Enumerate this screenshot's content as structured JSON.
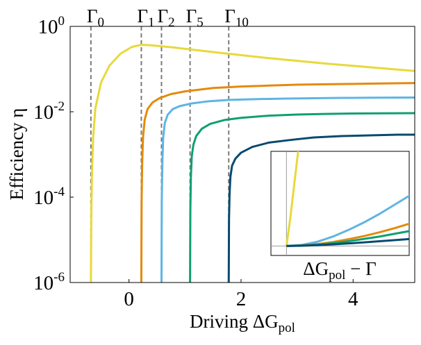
{
  "chart_data": [
    {
      "type": "line",
      "xlabel": "Driving ΔG",
      "xlabel_sub": "pol",
      "ylabel": "Efficiency η",
      "xlim": [
        -1.05,
        5.1
      ],
      "ylim": [
        1e-06,
        1
      ],
      "yscale": "log",
      "grid": false,
      "x_ticks": [
        {
          "value": 0,
          "label": "0"
        },
        {
          "value": 2,
          "label": "2"
        },
        {
          "value": 4,
          "label": "4"
        }
      ],
      "y_ticks": [
        {
          "value": 1,
          "base": "10",
          "exp": "0"
        },
        {
          "value": 0.01,
          "base": "10",
          "exp": "-2"
        },
        {
          "value": 0.0001,
          "base": "10",
          "exp": "-4"
        },
        {
          "value": 1e-06,
          "base": "10",
          "exp": "-6"
        }
      ],
      "thresholds": [
        {
          "label": "Γ",
          "sub": "0",
          "x": -0.68
        },
        {
          "label": "Γ",
          "sub": "1",
          "x": 0.22
        },
        {
          "label": "Γ",
          "sub": "2",
          "x": 0.58
        },
        {
          "label": "Γ",
          "sub": "5",
          "x": 1.09
        },
        {
          "label": "Γ",
          "sub": "10",
          "x": 1.78
        }
      ],
      "series": [
        {
          "color": "#e7d93a",
          "x": [
            -0.68,
            -0.672,
            -0.66,
            -0.64,
            -0.6,
            -0.5,
            -0.35,
            -0.15,
            0.05,
            0.22,
            0.4,
            0.8,
            1.5,
            2.5,
            3.5,
            4.5,
            5.1
          ],
          "y": [
            1e-06,
            5e-05,
            0.0004,
            0.0025,
            0.012,
            0.048,
            0.12,
            0.23,
            0.33,
            0.37,
            0.36,
            0.32,
            0.25,
            0.18,
            0.135,
            0.105,
            0.09
          ]
        },
        {
          "color": "#e38a0b",
          "x": [
            0.22,
            0.225,
            0.235,
            0.25,
            0.28,
            0.33,
            0.42,
            0.55,
            0.75,
            1.0,
            1.5,
            2.0,
            2.5,
            3.0,
            3.5,
            4.0,
            4.5,
            5.1
          ],
          "y": [
            1e-06,
            8e-05,
            0.0006,
            0.0025,
            0.0065,
            0.0115,
            0.0165,
            0.021,
            0.026,
            0.03,
            0.036,
            0.039,
            0.041,
            0.043,
            0.044,
            0.045,
            0.046,
            0.047
          ]
        },
        {
          "color": "#5db5e3",
          "x": [
            0.58,
            0.585,
            0.595,
            0.61,
            0.64,
            0.69,
            0.78,
            0.9,
            1.1,
            1.4,
            1.8,
            2.3,
            2.8,
            3.3,
            3.8,
            4.3,
            5.1
          ],
          "y": [
            1e-06,
            8e-05,
            0.0006,
            0.0025,
            0.0055,
            0.0085,
            0.0115,
            0.0135,
            0.0155,
            0.0175,
            0.019,
            0.0198,
            0.0204,
            0.0208,
            0.0211,
            0.0213,
            0.0215
          ]
        },
        {
          "color": "#0f9f73",
          "x": [
            1.09,
            1.095,
            1.105,
            1.12,
            1.15,
            1.2,
            1.3,
            1.45,
            1.7,
            2.0,
            2.5,
            3.0,
            3.5,
            4.0,
            4.5,
            5.1
          ],
          "y": [
            1e-06,
            5e-05,
            0.0003,
            0.0009,
            0.0017,
            0.0027,
            0.004,
            0.0052,
            0.0064,
            0.0072,
            0.0081,
            0.0086,
            0.0089,
            0.0091,
            0.0092,
            0.0093
          ]
        },
        {
          "color": "#064a6e",
          "x": [
            1.78,
            1.785,
            1.795,
            1.81,
            1.84,
            1.9,
            2.0,
            2.2,
            2.5,
            2.9,
            3.3,
            3.8,
            4.3,
            4.8,
            5.1
          ],
          "y": [
            1e-06,
            3e-05,
            0.00012,
            0.0003,
            0.00055,
            0.0008,
            0.0011,
            0.0015,
            0.0019,
            0.0022,
            0.0025,
            0.0027,
            0.0028,
            0.0029,
            0.0029
          ]
        }
      ]
    },
    {
      "type": "line",
      "xlabel": "ΔG",
      "xlabel_sub": "pol",
      "xlabel_suffix": " − Γ",
      "xlim": [
        -1,
        7.9
      ],
      "ylim": [
        -1,
        10
      ],
      "grid": false,
      "ref_lines": {
        "x": 0,
        "y": 0
      },
      "series": [
        {
          "color": "#e7d93a",
          "x": [
            0,
            0.25,
            0.5,
            0.75,
            0.86
          ],
          "y": [
            0,
            3,
            6.5,
            10,
            11.5
          ]
        },
        {
          "color": "#5db5e3",
          "x": [
            0,
            1,
            2,
            3,
            4,
            5,
            6,
            7,
            8
          ],
          "y": [
            0,
            0.12,
            0.45,
            1.0,
            1.7,
            2.5,
            3.4,
            4.4,
            5.4
          ]
        },
        {
          "color": "#e38a0b",
          "x": [
            0,
            1,
            2,
            3,
            4,
            5,
            6,
            7,
            8
          ],
          "y": [
            0,
            0.06,
            0.2,
            0.42,
            0.72,
            1.05,
            1.45,
            1.9,
            2.4
          ]
        },
        {
          "color": "#0f9f73",
          "x": [
            0,
            1,
            2,
            3,
            4,
            5,
            6,
            7,
            8
          ],
          "y": [
            0,
            0.05,
            0.15,
            0.3,
            0.5,
            0.75,
            1.0,
            1.3,
            1.6
          ]
        },
        {
          "color": "#064a6e",
          "x": [
            0,
            1,
            2,
            3,
            4,
            5,
            6,
            7,
            8
          ],
          "y": [
            0,
            0.03,
            0.09,
            0.17,
            0.27,
            0.38,
            0.5,
            0.62,
            0.75
          ]
        }
      ]
    }
  ]
}
